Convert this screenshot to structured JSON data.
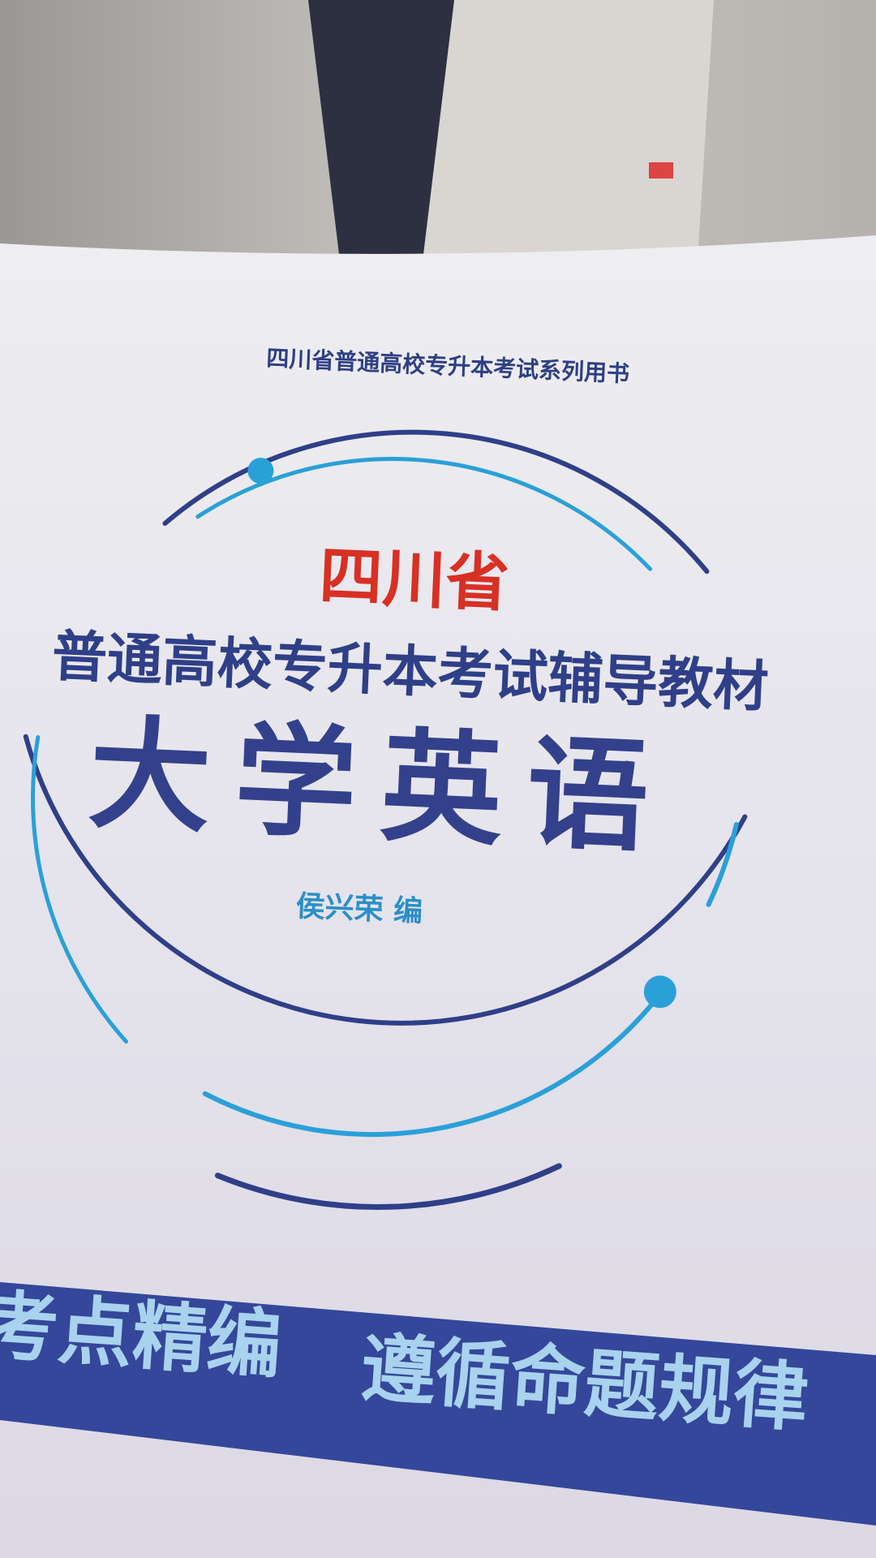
{
  "cover": {
    "series": "四川省普通高校专升本考试系列用书",
    "province": "四川省",
    "subtitle": "普通高校专升本考试辅导教材",
    "title": "大学英语",
    "author": "侯兴荣 编",
    "slogans": [
      "考点精编",
      "遵循命题规律"
    ]
  }
}
